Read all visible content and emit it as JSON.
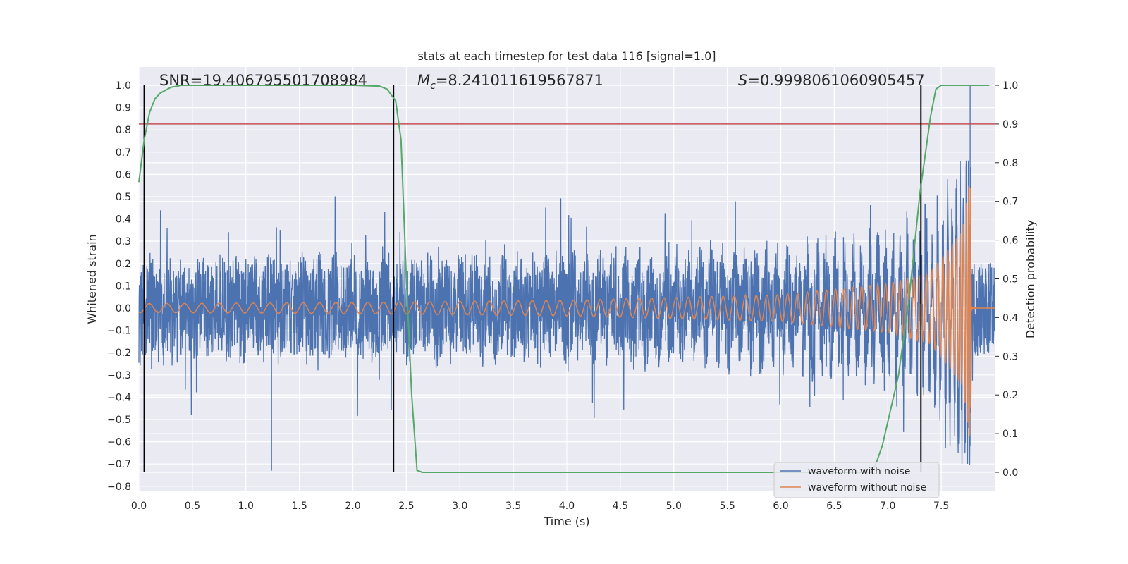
{
  "chart_data": {
    "type": "line",
    "title": "stats at each timestep for test data 116 [signal=1.0]",
    "xlabel": "Time (s)",
    "ylabel_left": "Whitened strain",
    "ylabel_right": "Detection probability",
    "xlim": [
      0.0,
      8.0
    ],
    "ylim_left": [
      -0.82,
      1.07
    ],
    "ylim_right": [
      0.0,
      1.0
    ],
    "grid": true,
    "legend_position": "lower-right",
    "x_ticks": [
      "0.0",
      "0.5",
      "1.0",
      "1.5",
      "2.0",
      "2.5",
      "3.0",
      "3.5",
      "4.0",
      "4.5",
      "5.0",
      "5.5",
      "6.0",
      "6.5",
      "7.0",
      "7.5"
    ],
    "x_tick_values": [
      0.0,
      0.5,
      1.0,
      1.5,
      2.0,
      2.5,
      3.0,
      3.5,
      4.0,
      4.5,
      5.0,
      5.5,
      6.0,
      6.5,
      7.0,
      7.5
    ],
    "y_ticks_left": [
      "1.0",
      "0.9",
      "0.8",
      "0.7",
      "0.6",
      "0.5",
      "0.4",
      "0.3",
      "0.2",
      "0.1",
      "0.0",
      "−0.1",
      "−0.2",
      "−0.3",
      "−0.4",
      "−0.5",
      "−0.6",
      "−0.7",
      "−0.8"
    ],
    "y_tick_values_left": [
      1.0,
      0.9,
      0.8,
      0.7,
      0.6,
      0.5,
      0.4,
      0.3,
      0.2,
      0.1,
      0.0,
      -0.1,
      -0.2,
      -0.3,
      -0.4,
      -0.5,
      -0.6,
      -0.7,
      -0.8
    ],
    "y_ticks_right": [
      "1.0",
      "0.9",
      "0.8",
      "0.7",
      "0.6",
      "0.5",
      "0.4",
      "0.3",
      "0.2",
      "0.1",
      "0.0"
    ],
    "y_tick_values_right": [
      1.0,
      0.9,
      0.8,
      0.7,
      0.6,
      0.5,
      0.4,
      0.3,
      0.2,
      0.1,
      0.0
    ],
    "annotations": {
      "snr": "SNR=19.406795501708984",
      "mc_symbol": "M",
      "mc_sub": "c",
      "mc_value": "=8.241011619567871",
      "s_symbol": "S",
      "s_value": "=0.9998061060905457"
    },
    "series": [
      {
        "name": "waveform with noise",
        "color": "#4c72b0",
        "axis": "left",
        "kind": "noisy strain",
        "x_range": [
          0.0,
          8.0
        ],
        "typical_amplitude": 0.3,
        "extremes": [
          [
            1.24,
            -0.73
          ],
          [
            7.77,
            1.0
          ],
          [
            7.77,
            -0.62
          ]
        ]
      },
      {
        "name": "waveform without noise",
        "color": "#dd8452",
        "axis": "left",
        "kind": "chirp",
        "x_range": [
          0.0,
          7.78
        ],
        "envelope": [
          [
            0.0,
            0.02
          ],
          [
            2.0,
            0.025
          ],
          [
            4.0,
            0.035
          ],
          [
            6.0,
            0.06
          ],
          [
            7.0,
            0.11
          ],
          [
            7.4,
            0.16
          ],
          [
            7.7,
            0.35
          ],
          [
            7.77,
            0.6
          ],
          [
            7.8,
            0.0
          ]
        ]
      },
      {
        "name": "",
        "color": "#55a868",
        "axis": "right",
        "kind": "detection probability",
        "points": [
          [
            0.0,
            0.75
          ],
          [
            0.05,
            0.86
          ],
          [
            0.1,
            0.93
          ],
          [
            0.15,
            0.965
          ],
          [
            0.2,
            0.98
          ],
          [
            0.3,
            0.995
          ],
          [
            0.4,
            1.0
          ],
          [
            2.0,
            1.0
          ],
          [
            2.25,
            0.998
          ],
          [
            2.32,
            0.99
          ],
          [
            2.4,
            0.96
          ],
          [
            2.45,
            0.86
          ],
          [
            2.5,
            0.5
          ],
          [
            2.55,
            0.2
          ],
          [
            2.6,
            0.005
          ],
          [
            2.65,
            0.0
          ],
          [
            6.85,
            0.0
          ],
          [
            6.9,
            0.03
          ],
          [
            6.95,
            0.07
          ],
          [
            7.0,
            0.13
          ],
          [
            7.1,
            0.25
          ],
          [
            7.2,
            0.45
          ],
          [
            7.3,
            0.72
          ],
          [
            7.4,
            0.92
          ],
          [
            7.45,
            0.99
          ],
          [
            7.5,
            1.0
          ],
          [
            7.95,
            1.0
          ]
        ]
      }
    ],
    "threshold_line": {
      "color": "#c44e52",
      "axis": "right",
      "value": 0.9
    },
    "markers": {
      "color": "#000000",
      "x": [
        0.05,
        2.38,
        7.31
      ]
    }
  },
  "legend": {
    "noisy_label": "waveform with noise",
    "clean_label": "waveform without noise"
  }
}
